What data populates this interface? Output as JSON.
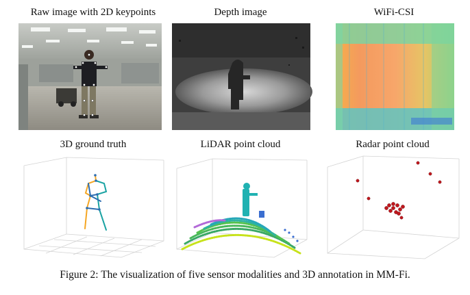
{
  "figure": {
    "panels": [
      {
        "title": "Raw image with 2D keypoints"
      },
      {
        "title": "Depth image"
      },
      {
        "title": "WiFi-CSI"
      },
      {
        "title": "3D ground truth"
      },
      {
        "title": "LiDAR point cloud"
      },
      {
        "title": "Radar point cloud"
      }
    ],
    "caption": "Figure 2: The visualization of five sensor modalities and 3D annotation in MM-Fi."
  },
  "colors": {
    "background": "#ffffff",
    "skeleton_orange": "#f5a623",
    "skeleton_blue": "#2b6cb0",
    "skeleton_teal": "#1aa3a3",
    "radar_red": "#c0181e"
  }
}
